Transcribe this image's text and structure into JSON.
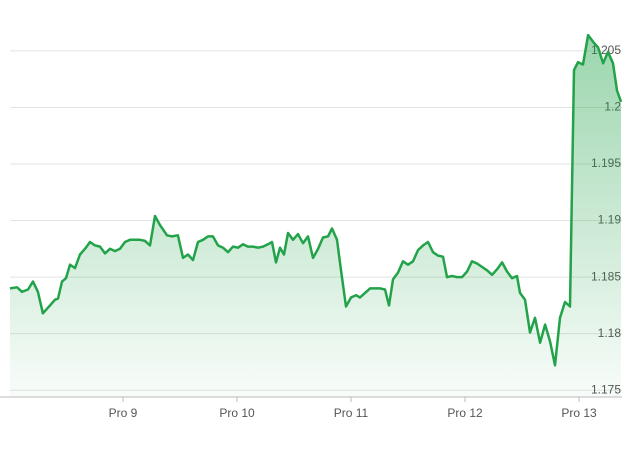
{
  "chart_data": {
    "type": "area",
    "x": [
      8.009,
      8.07,
      8.114,
      8.167,
      8.211,
      8.254,
      8.298,
      8.36,
      8.404,
      8.43,
      8.465,
      8.5,
      8.535,
      8.579,
      8.623,
      8.675,
      8.711,
      8.754,
      8.798,
      8.842,
      8.886,
      8.93,
      8.974,
      9.018,
      9.061,
      9.149,
      9.193,
      9.237,
      9.281,
      9.325,
      9.386,
      9.43,
      9.482,
      9.526,
      9.57,
      9.614,
      9.658,
      9.702,
      9.746,
      9.789,
      9.833,
      9.877,
      9.921,
      9.965,
      10.009,
      10.053,
      10.096,
      10.14,
      10.184,
      10.228,
      10.272,
      10.307,
      10.342,
      10.377,
      10.412,
      10.447,
      10.491,
      10.535,
      10.579,
      10.623,
      10.667,
      10.711,
      10.754,
      10.798,
      10.833,
      10.877,
      10.912,
      10.956,
      11.0,
      11.044,
      11.079,
      11.123,
      11.167,
      11.211,
      11.254,
      11.298,
      11.333,
      11.368,
      11.412,
      11.456,
      11.5,
      11.544,
      11.588,
      11.632,
      11.675,
      11.719,
      11.763,
      11.807,
      11.842,
      11.886,
      11.93,
      11.974,
      12.018,
      12.061,
      12.105,
      12.149,
      12.193,
      12.237,
      12.281,
      12.325,
      12.368,
      12.412,
      12.456,
      12.482,
      12.526,
      12.57,
      12.614,
      12.658,
      12.702,
      12.746,
      12.789,
      12.833,
      12.877,
      12.921,
      12.956,
      12.991,
      13.035,
      13.079,
      13.123,
      13.167,
      13.211,
      13.254,
      13.298,
      13.333,
      13.368
    ],
    "series": [
      {
        "color": "#22a34a",
        "values": [
          1.184,
          1.1841,
          1.1837,
          1.1839,
          1.1846,
          1.1837,
          1.1818,
          1.1825,
          1.183,
          1.1831,
          1.1846,
          1.1849,
          1.1861,
          1.1858,
          1.187,
          1.1876,
          1.1881,
          1.1878,
          1.1877,
          1.1871,
          1.1875,
          1.1873,
          1.1875,
          1.1881,
          1.1883,
          1.1883,
          1.1882,
          1.1878,
          1.1904,
          1.1896,
          1.1887,
          1.1886,
          1.1887,
          1.1867,
          1.187,
          1.1865,
          1.1881,
          1.1883,
          1.1886,
          1.1886,
          1.1878,
          1.1876,
          1.1872,
          1.1877,
          1.1876,
          1.1879,
          1.1877,
          1.1877,
          1.1876,
          1.1877,
          1.1879,
          1.1881,
          1.1863,
          1.1876,
          1.187,
          1.1889,
          1.1883,
          1.1888,
          1.188,
          1.1886,
          1.1867,
          1.1875,
          1.1885,
          1.1886,
          1.1893,
          1.1883,
          1.1856,
          1.1824,
          1.1832,
          1.1834,
          1.1832,
          1.1836,
          1.184,
          1.184,
          1.184,
          1.1839,
          1.1825,
          1.1848,
          1.1854,
          1.1864,
          1.1861,
          1.1864,
          1.1874,
          1.1878,
          1.1881,
          1.1872,
          1.1869,
          1.1868,
          1.185,
          1.1851,
          1.185,
          1.185,
          1.1855,
          1.1864,
          1.1862,
          1.1859,
          1.1856,
          1.1852,
          1.1857,
          1.1863,
          1.1855,
          1.1849,
          1.1851,
          1.1836,
          1.183,
          1.1801,
          1.1814,
          1.1792,
          1.1808,
          1.1793,
          1.1772,
          1.1814,
          1.1828,
          1.1824,
          1.2033,
          1.204,
          1.2038,
          1.2064,
          1.2058,
          1.2053,
          1.2039,
          1.2049,
          1.2039,
          1.2015,
          1.2005
        ]
      }
    ],
    "xlim": [
      8.009,
      13.368
    ],
    "xticks": [
      {
        "value": 9,
        "label": "Pro 9"
      },
      {
        "value": 10,
        "label": "Pro 10"
      },
      {
        "value": 11,
        "label": "Pro 11"
      },
      {
        "value": 12,
        "label": "Pro 12"
      },
      {
        "value": 13,
        "label": "Pro 13"
      }
    ],
    "ylim": [
      1.1744,
      1.2095
    ],
    "yticks": [
      1.175,
      1.18,
      1.185,
      1.19,
      1.195,
      1.2,
      1.205
    ],
    "grid": true
  }
}
